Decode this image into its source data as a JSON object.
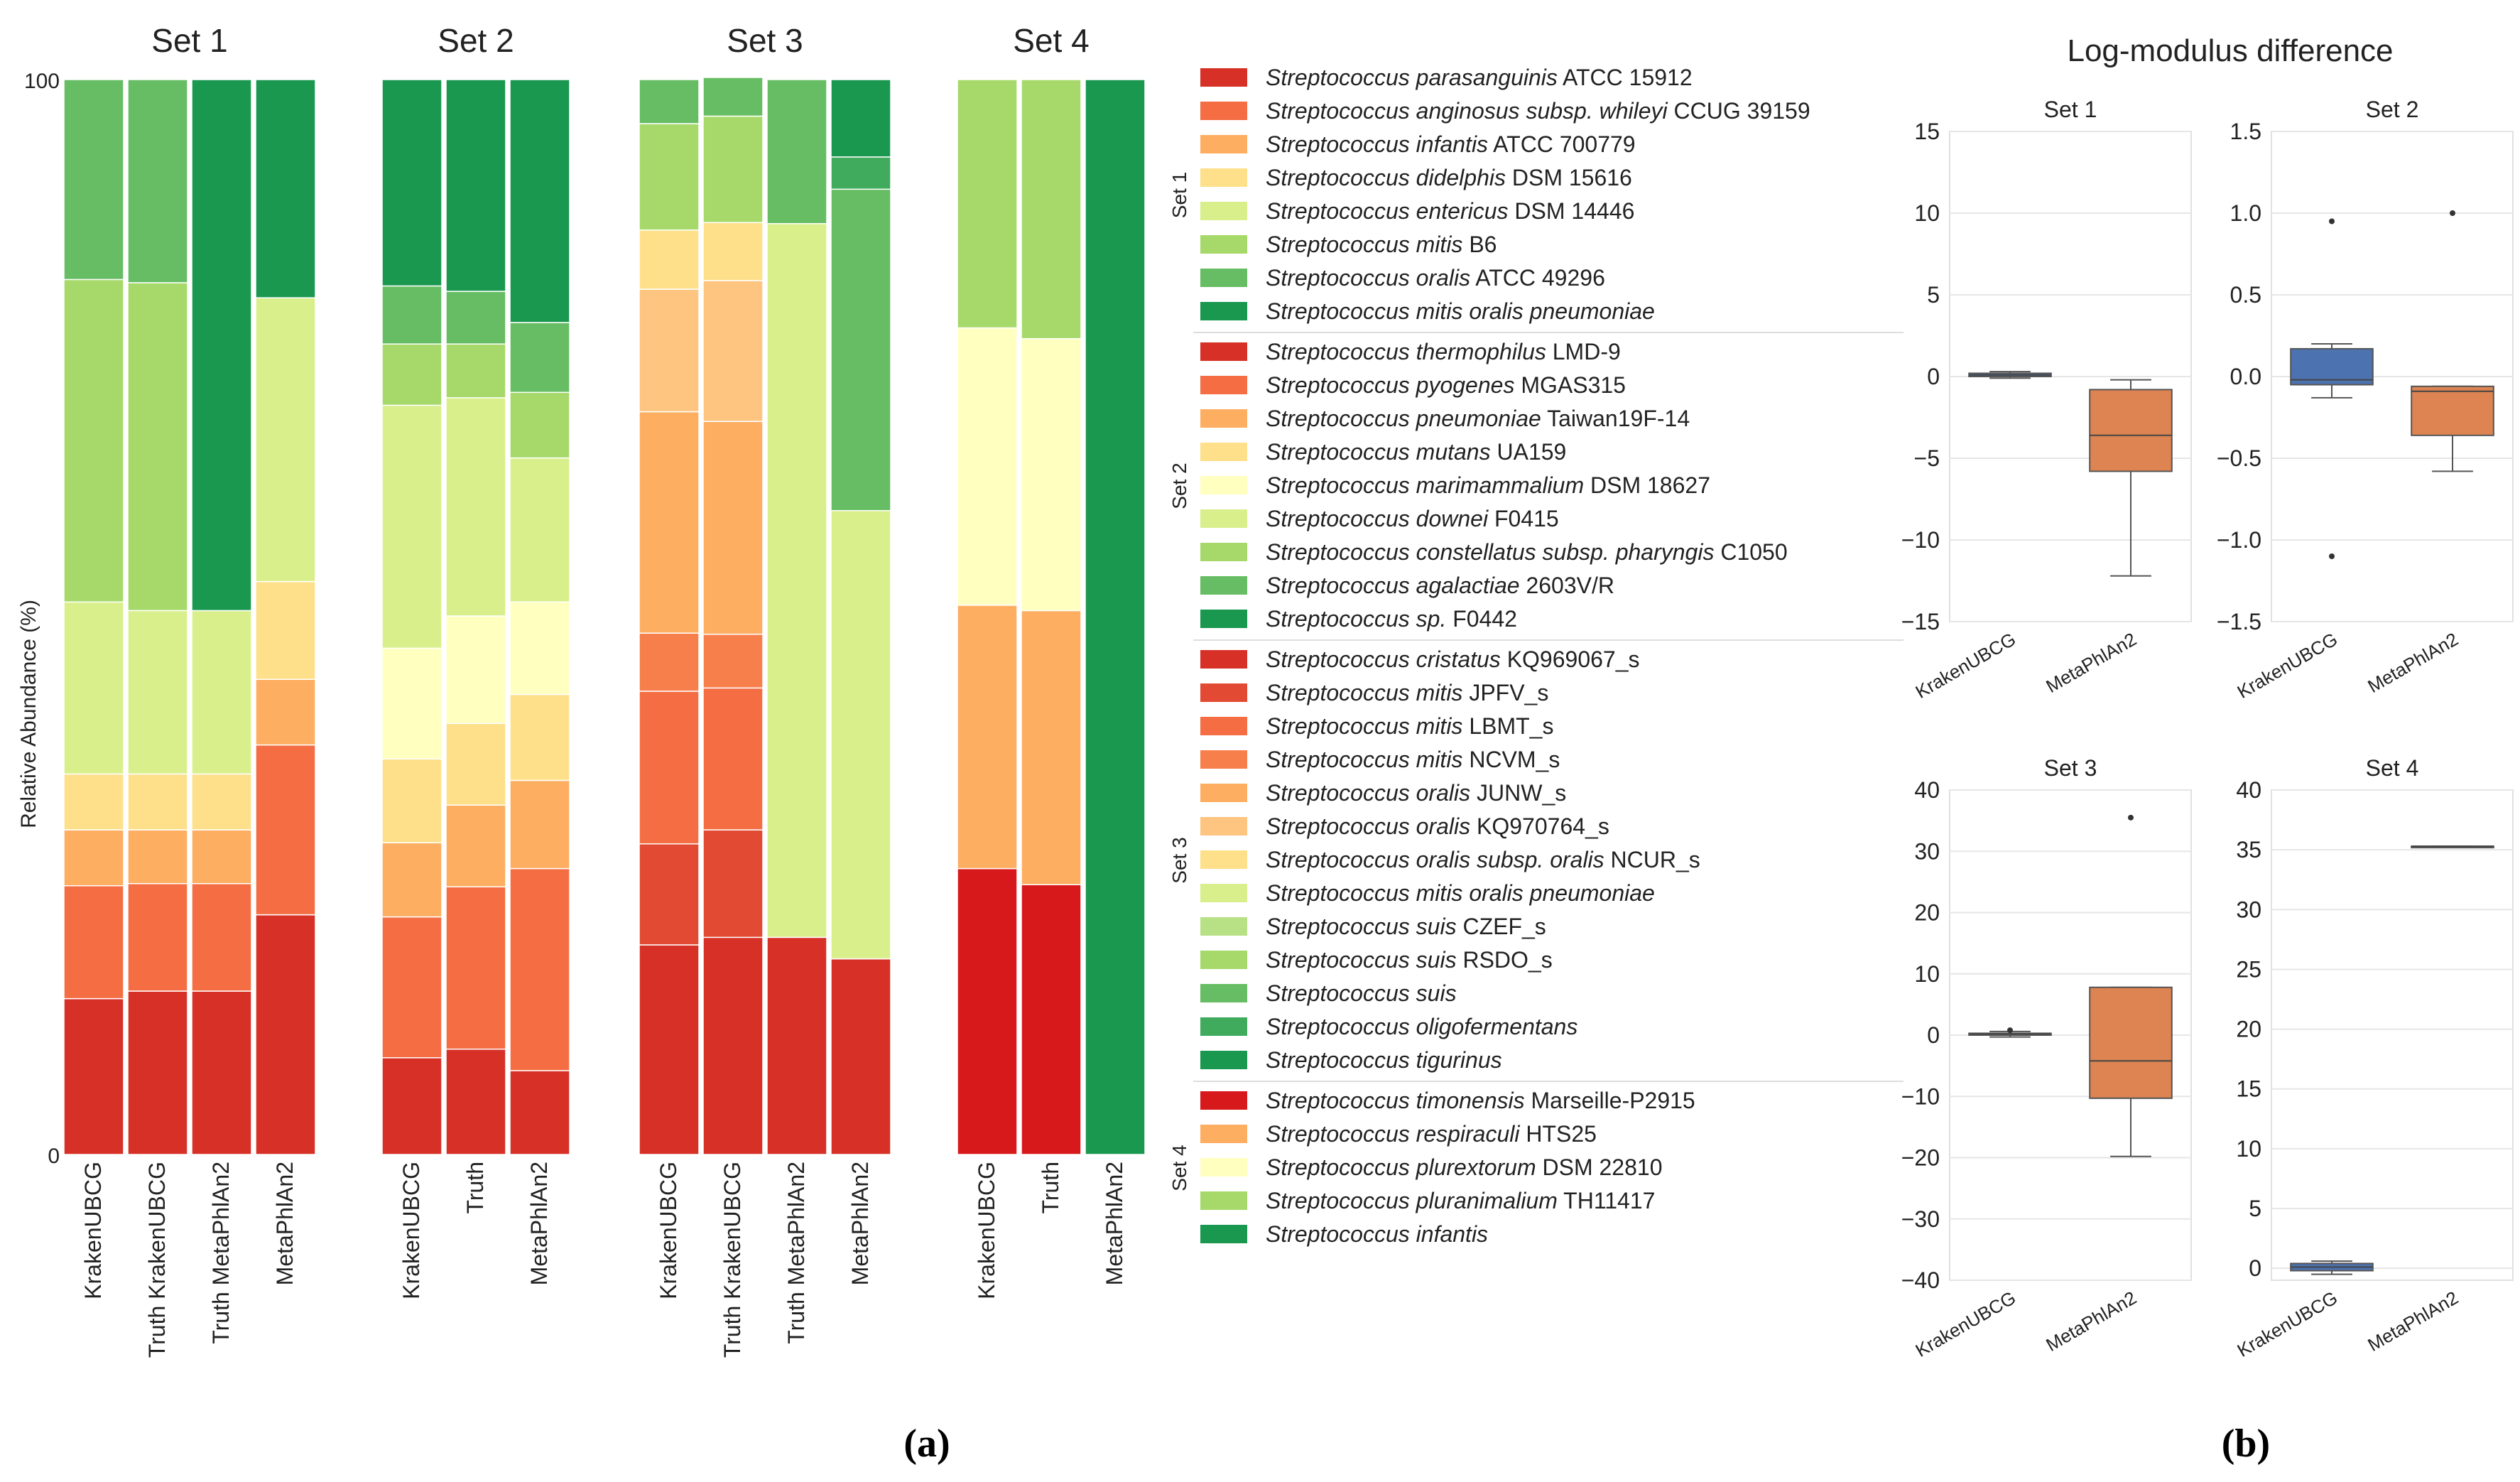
{
  "figure_label_a": "(a)",
  "figure_label_b": "(b)",
  "chart_data": [
    {
      "type": "bar",
      "subtype": "stacked-100",
      "ylabel": "Relative Abundance (%)",
      "ylim": [
        0,
        100
      ],
      "ytick_labels": [
        "100",
        "0"
      ],
      "sets": [
        {
          "title": "Set 1",
          "categories": [
            "KrakenUBCG",
            "Truth KrakenUBCG",
            "Truth MetaPhlAn2",
            "MetaPhlAn2"
          ],
          "series_colors": [
            "#d73027",
            "#f46d43",
            "#fdae61",
            "#fee08b",
            "#d9ef8b",
            "#a6d96a",
            "#66bd63",
            "#1a9850"
          ],
          "stacks": [
            [
              14.5,
              10.5,
              5.2,
              5.2,
              16.0,
              30.0,
              18.6,
              0.0
            ],
            [
              15.2,
              10.0,
              5.0,
              5.2,
              15.2,
              30.5,
              18.9,
              0.0
            ],
            [
              15.2,
              10.0,
              5.0,
              5.2,
              15.2,
              0.0,
              0.0,
              49.4
            ],
            [
              22.3,
              15.8,
              6.1,
              9.1,
              26.4,
              0.0,
              0.0,
              20.3
            ]
          ]
        },
        {
          "title": "Set 2",
          "categories": [
            "KrakenUBCG",
            "Truth",
            "MetaPhlAn2"
          ],
          "series_colors": [
            "#d73027",
            "#f46d43",
            "#fdae61",
            "#fee08b",
            "#ffffbf",
            "#d9ef8b",
            "#a6d96a",
            "#66bd63",
            "#1a9850"
          ],
          "stacks": [
            [
              9.0,
              13.1,
              6.9,
              7.8,
              10.3,
              22.6,
              5.7,
              5.4,
              19.2
            ],
            [
              9.8,
              15.1,
              7.6,
              7.6,
              10.0,
              20.3,
              5.0,
              4.9,
              19.7
            ],
            [
              7.8,
              18.8,
              8.2,
              8.0,
              8.6,
              13.4,
              6.1,
              6.5,
              22.6
            ]
          ]
        },
        {
          "title": "Set 3",
          "categories": [
            "KrakenUBCG",
            "Truth KrakenUBCG",
            "Truth MetaPhlAn2",
            "MetaPhlAn2"
          ],
          "series_colors": [
            "#d73027",
            "#e34a33",
            "#f46d43",
            "#f67f4b",
            "#fdae61",
            "#fdc57f",
            "#fee08b",
            "#d9ef8b",
            "#b8e186",
            "#a6d96a",
            "#66bd63",
            "#41ab5d",
            "#1a9850"
          ],
          "stacks": [
            [
              19.5,
              9.4,
              14.2,
              5.4,
              20.6,
              11.4,
              5.5,
              0.0,
              0.0,
              9.9,
              4.1,
              0.0,
              0.0
            ],
            [
              20.2,
              10.0,
              13.2,
              5.0,
              19.8,
              13.1,
              5.4,
              0.0,
              0.0,
              9.9,
              3.6,
              0.0,
              0.0
            ],
            [
              20.2,
              0.0,
              0.0,
              0.0,
              0.0,
              0.0,
              0.0,
              66.4,
              0.0,
              0.0,
              13.4,
              0.0,
              0.0
            ],
            [
              18.2,
              0.0,
              0.0,
              0.0,
              0.0,
              0.0,
              0.0,
              41.7,
              0.0,
              0.0,
              29.9,
              3.0,
              7.2
            ]
          ]
        },
        {
          "title": "Set 4",
          "categories": [
            "KrakenUBCG",
            "Truth",
            "MetaPhlAn2"
          ],
          "series_colors": [
            "#d7191c",
            "#fdae61",
            "#ffffbf",
            "#a6d96a",
            "#1a9850"
          ],
          "stacks": [
            [
              26.6,
              24.5,
              25.8,
              23.1,
              0.0
            ],
            [
              25.1,
              25.5,
              25.3,
              24.1,
              0.0
            ],
            [
              0.0,
              0.0,
              0.0,
              0.0,
              100.0
            ]
          ]
        }
      ]
    },
    {
      "type": "box",
      "title": "Log-modulus difference",
      "categories": [
        "KrakenUBCG",
        "MetaPhlAn2"
      ],
      "colors": [
        "#4c72b0",
        "#dd8452"
      ],
      "panels": [
        {
          "title": "Set 1",
          "ylim": [
            -15,
            15
          ],
          "ticks": [
            -15,
            -10,
            -5,
            0,
            5,
            10,
            15
          ],
          "boxes": [
            {
              "q1": 0.0,
              "median": 0.1,
              "q3": 0.2,
              "whislo": -0.1,
              "whishi": 0.3,
              "fliers": []
            },
            {
              "q1": -5.8,
              "median": -3.6,
              "q3": -0.8,
              "whislo": -12.2,
              "whishi": -0.2,
              "fliers": []
            }
          ]
        },
        {
          "title": "Set 2",
          "ylim": [
            -1.5,
            1.5
          ],
          "ticks": [
            -1.5,
            -1.0,
            -0.5,
            0.0,
            0.5,
            1.0,
            1.5
          ],
          "boxes": [
            {
              "q1": -0.05,
              "median": -0.02,
              "q3": 0.17,
              "whislo": -0.13,
              "whishi": 0.2,
              "fliers": [
                0.95,
                -1.1
              ]
            },
            {
              "q1": -0.36,
              "median": -0.09,
              "q3": -0.06,
              "whislo": -0.58,
              "whishi": -0.06,
              "fliers": [
                1.0
              ]
            }
          ]
        },
        {
          "title": "Set 3",
          "ylim": [
            -40,
            40
          ],
          "ticks": [
            -40,
            -30,
            -20,
            -10,
            0,
            10,
            20,
            30,
            40
          ],
          "boxes": [
            {
              "q1": 0.0,
              "median": 0.2,
              "q3": 0.3,
              "whislo": -0.3,
              "whishi": 0.6,
              "fliers": [
                0.8
              ]
            },
            {
              "q1": -10.3,
              "median": -4.2,
              "q3": 7.8,
              "whislo": -19.8,
              "whishi": 7.8,
              "fliers": [
                35.5
              ]
            }
          ]
        },
        {
          "title": "Set 4",
          "ylim": [
            -1,
            40
          ],
          "ticks": [
            0,
            5,
            10,
            15,
            20,
            25,
            30,
            35,
            40
          ],
          "boxes": [
            {
              "q1": -0.2,
              "median": 0.1,
              "q3": 0.4,
              "whislo": -0.5,
              "whishi": 0.6,
              "fliers": []
            },
            {
              "q1": 35.3,
              "median": 35.3,
              "q3": 35.3,
              "whislo": 35.3,
              "whishi": 35.3,
              "fliers": []
            }
          ]
        }
      ]
    }
  ],
  "legend": {
    "groups": [
      {
        "label": "Set 1",
        "items": [
          {
            "color": "#d73027",
            "species": "Streptococcus parasanguinis",
            "strain": "ATCC 15912"
          },
          {
            "color": "#f46d43",
            "species": "Streptococcus anginosus subsp. whileyi",
            "strain": "CCUG 39159"
          },
          {
            "color": "#fdae61",
            "species": "Streptococcus infantis",
            "strain": "ATCC 700779"
          },
          {
            "color": "#fee08b",
            "species": "Streptococcus didelphis",
            "strain": "DSM 15616"
          },
          {
            "color": "#d9ef8b",
            "species": "Streptococcus entericus",
            "strain": "DSM 14446"
          },
          {
            "color": "#a6d96a",
            "species": "Streptococcus mitis",
            "strain": "B6"
          },
          {
            "color": "#66bd63",
            "species": "Streptococcus oralis",
            "strain": "ATCC 49296"
          },
          {
            "color": "#1a9850",
            "species": "Streptococcus mitis oralis pneumoniae",
            "strain": ""
          }
        ]
      },
      {
        "label": "Set 2",
        "items": [
          {
            "color": "#d73027",
            "species": "Streptococcus thermophilus",
            "strain": "LMD-9"
          },
          {
            "color": "#f46d43",
            "species": "Streptococcus pyogenes",
            "strain": "MGAS315"
          },
          {
            "color": "#fdae61",
            "species": "Streptococcus pneumoniae",
            "strain": "Taiwan19F-14"
          },
          {
            "color": "#fee08b",
            "species": "Streptococcus mutans",
            "strain": "UA159"
          },
          {
            "color": "#ffffbf",
            "species": "Streptococcus marimammalium",
            "strain": "DSM 18627"
          },
          {
            "color": "#d9ef8b",
            "species": "Streptococcus downei",
            "strain": "F0415"
          },
          {
            "color": "#a6d96a",
            "species": "Streptococcus constellatus subsp. pharyngis",
            "strain": "C1050"
          },
          {
            "color": "#66bd63",
            "species": "Streptococcus agalactiae",
            "strain": "2603V/R"
          },
          {
            "color": "#1a9850",
            "species": "Streptococcus sp.",
            "strain": "F0442"
          }
        ]
      },
      {
        "label": "Set 3",
        "items": [
          {
            "color": "#d73027",
            "species": "Streptococcus cristatus",
            "strain": "KQ969067_s"
          },
          {
            "color": "#e34a33",
            "species": "Streptococcus mitis",
            "strain": "JPFV_s"
          },
          {
            "color": "#f46d43",
            "species": "Streptococcus mitis",
            "strain": "LBMT_s"
          },
          {
            "color": "#f67f4b",
            "species": "Streptococcus mitis",
            "strain": "NCVM_s"
          },
          {
            "color": "#fdae61",
            "species": "Streptococcus oralis",
            "strain": "JUNW_s"
          },
          {
            "color": "#fdc57f",
            "species": "Streptococcus oralis",
            "strain": "KQ970764_s"
          },
          {
            "color": "#fee08b",
            "species": "Streptococcus oralis subsp. oralis",
            "strain": "NCUR_s"
          },
          {
            "color": "#d9ef8b",
            "species": "Streptococcus mitis oralis pneumoniae",
            "strain": ""
          },
          {
            "color": "#b8e186",
            "species": "Streptococcus suis",
            "strain": "CZEF_s"
          },
          {
            "color": "#a6d96a",
            "species": "Streptococcus suis",
            "strain": "RSDO_s"
          },
          {
            "color": "#66bd63",
            "species": "Streptococcus suis",
            "strain": ""
          },
          {
            "color": "#41ab5d",
            "species": "Streptococcus oligofermentans",
            "strain": ""
          },
          {
            "color": "#1a9850",
            "species": "Streptococcus tigurinus",
            "strain": ""
          }
        ]
      },
      {
        "label": "Set 4",
        "items": [
          {
            "color": "#d7191c",
            "species": "Streptococcus timonensis",
            "strain": "Marseille-P2915"
          },
          {
            "color": "#fdae61",
            "species": "Streptococcus respiraculi",
            "strain": "HTS25"
          },
          {
            "color": "#ffffbf",
            "species": "Streptococcus plurextorum",
            "strain": "DSM 22810"
          },
          {
            "color": "#a6d96a",
            "species": "Streptococcus pluranimalium",
            "strain": "TH11417"
          },
          {
            "color": "#1a9850",
            "species": "Streptococcus infantis",
            "strain": ""
          }
        ]
      }
    ]
  }
}
